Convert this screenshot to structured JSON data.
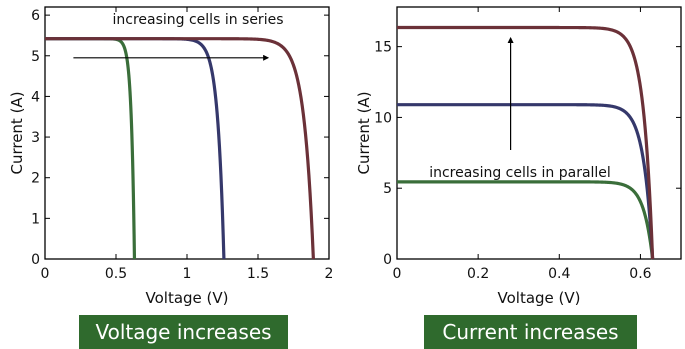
{
  "chart_data": [
    {
      "type": "line",
      "xlabel": "Voltage (V)",
      "ylabel": "Current (A)",
      "xlim": [
        0,
        2
      ],
      "ylim": [
        0,
        6.2
      ],
      "xticks": [
        0,
        0.5,
        1,
        1.5,
        2
      ],
      "xtick_labels": [
        "0",
        "0.5",
        "1",
        "1.5",
        "2"
      ],
      "yticks": [
        0,
        1,
        2,
        3,
        4,
        5,
        6
      ],
      "ytick_labels": [
        "0",
        "1",
        "2",
        "3",
        "4",
        "5",
        "6"
      ],
      "grid": false,
      "annotation": "increasing cells in series",
      "arrow": {
        "from": [
          0.2,
          4.95
        ],
        "to": [
          1.57,
          4.95
        ]
      },
      "series": [
        {
          "color": "#3a6e3a",
          "isc": 5.42,
          "voc": 0.63
        },
        {
          "color": "#35386b",
          "isc": 5.42,
          "voc": 1.26
        },
        {
          "color": "#6b3138",
          "isc": 5.42,
          "voc": 1.89
        }
      ]
    },
    {
      "type": "line",
      "xlabel": "Voltage (V)",
      "ylabel": "Current (A)",
      "xlim": [
        0,
        0.7
      ],
      "ylim": [
        0,
        17.8
      ],
      "xticks": [
        0,
        0.2,
        0.4,
        0.6
      ],
      "xtick_labels": [
        "0",
        "0.2",
        "0.4",
        "0.6"
      ],
      "yticks": [
        0,
        5,
        10,
        15
      ],
      "ytick_labels": [
        "0",
        "5",
        "10",
        "15"
      ],
      "grid": false,
      "annotation": "increasing cells in parallel",
      "arrow": {
        "from": [
          0.28,
          7.7
        ],
        "to": [
          0.28,
          15.6
        ]
      },
      "series": [
        {
          "color": "#3a6e3a",
          "isc": 5.45,
          "voc": 0.63
        },
        {
          "color": "#35386b",
          "isc": 10.9,
          "voc": 0.63
        },
        {
          "color": "#6b3138",
          "isc": 16.35,
          "voc": 0.63
        }
      ]
    }
  ],
  "banners": {
    "left": "Voltage increases",
    "right": "Current increases",
    "color": "#2f6a2d"
  }
}
